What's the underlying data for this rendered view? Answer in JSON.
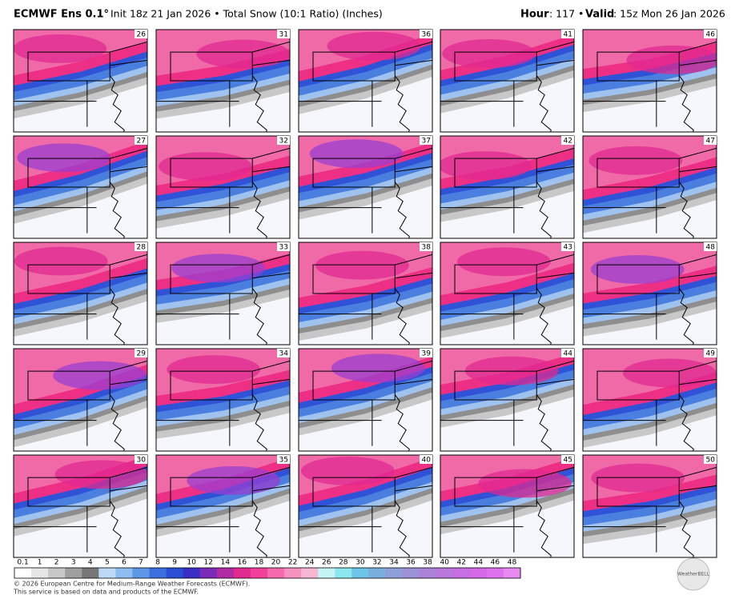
{
  "header": {
    "model": "ECMWF Ens 0.1°",
    "init": "Init 18z 21 Jan 2026 • Total Snow (10:1 Ratio) (Inches)",
    "hour_label": "Hour",
    "hour": ": 117 • ",
    "valid_label": "Valid",
    "valid": ": 15z Mon 26 Jan 2026"
  },
  "panels": [
    [
      "26",
      "31",
      "36",
      "41",
      "46"
    ],
    [
      "27",
      "32",
      "37",
      "42",
      "47"
    ],
    [
      "28",
      "33",
      "38",
      "43",
      "48"
    ],
    [
      "29",
      "34",
      "39",
      "44",
      "49"
    ],
    [
      "30",
      "35",
      "40",
      "45",
      "50"
    ]
  ],
  "colorbar": {
    "labels": [
      "0.1",
      "1",
      "2",
      "3",
      "4",
      "5",
      "6",
      "7",
      "8",
      "9",
      "10",
      "12",
      "14",
      "16",
      "18",
      "20",
      "22",
      "24",
      "26",
      "28",
      "30",
      "32",
      "34",
      "36",
      "38",
      "40",
      "42",
      "44",
      "46",
      "48"
    ]
  },
  "footer": {
    "line1": "© 2026 European Centre for Medium-Range Weather Forecasts (ECMWF).",
    "line2": "This service is based on data and products of the ECMWF.",
    "logo": "WeatherBELL"
  }
}
